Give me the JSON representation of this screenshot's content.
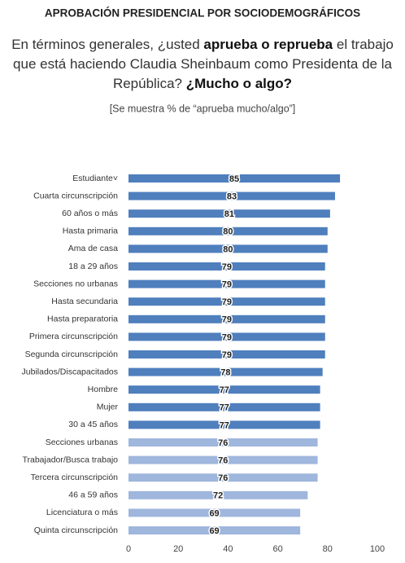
{
  "chart_data": {
    "type": "bar",
    "orientation": "horizontal",
    "title": "APROBACIÓN PRESIDENCIAL POR SOCIODEMOGRÁFICOS",
    "subtitle": [
      {
        "text": "En términos generales, ¿usted ",
        "bold": false
      },
      {
        "text": "aprueba o reprueba",
        "bold": true
      },
      {
        "text": " el trabajo que está haciendo Claudia Sheinbaum como Presidenta de la República? ",
        "bold": false
      },
      {
        "text": "¿Mucho o algo?",
        "bold": true
      }
    ],
    "note": "[Se muestra % de “aprueba mucho/algo”]",
    "categories": [
      "Estudiante˅",
      "Cuarta circunscripción",
      "60 años o más",
      "Hasta primaria",
      "Ama de casa",
      "18 a 29 años",
      "Secciones no urbanas",
      "Hasta secundaria",
      "Hasta preparatoria",
      "Primera circunscripción",
      "Segunda circunscripción",
      "Jubilados/Discapacitados",
      "Hombre",
      "Mujer",
      "30 a 45 años",
      "Secciones urbanas",
      "Trabajador/Busca trabajo",
      "Tercera circunscripción",
      "46 a 59 años",
      "Licenciatura o más",
      "Quinta circunscripción"
    ],
    "values": [
      85,
      83,
      81,
      80,
      80,
      79,
      79,
      79,
      79,
      79,
      79,
      78,
      77,
      77,
      77,
      76,
      76,
      76,
      72,
      69,
      69
    ],
    "colors": [
      "#4f7fbd",
      "#4f7fbd",
      "#4f7fbd",
      "#4f7fbd",
      "#4f7fbd",
      "#4f7fbd",
      "#4f7fbd",
      "#4f7fbd",
      "#4f7fbd",
      "#4f7fbd",
      "#4f7fbd",
      "#4f7fbd",
      "#4f7fbd",
      "#4f7fbd",
      "#4f7fbd",
      "#9fb6dd",
      "#9fb6dd",
      "#9fb6dd",
      "#9fb6dd",
      "#9fb6dd",
      "#9fb6dd"
    ],
    "xlim": [
      0,
      100
    ],
    "xticks": [
      0,
      20,
      40,
      60,
      80,
      100
    ]
  }
}
